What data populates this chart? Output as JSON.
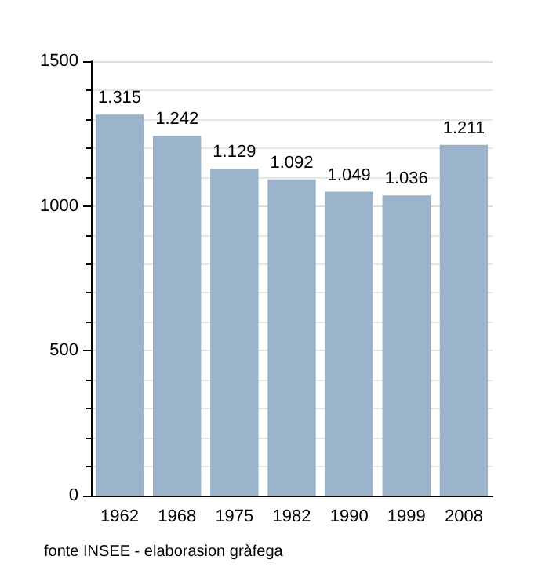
{
  "chart_data": {
    "type": "bar",
    "categories": [
      "1962",
      "1968",
      "1975",
      "1982",
      "1990",
      "1999",
      "2008"
    ],
    "values": [
      1315,
      1242,
      1129,
      1092,
      1049,
      1036,
      1211
    ],
    "value_labels": [
      "1.315",
      "1.242",
      "1.129",
      "1.092",
      "1.049",
      "1.036",
      "1.211"
    ],
    "color": "#9bb4cc",
    "ylim": [
      0,
      1500
    ],
    "yticks": [
      0,
      500,
      {
        "value": 1000,
        "label": "1000"
      },
      {
        "value": 1500,
        "label": "1500"
      }
    ],
    "grid": "y",
    "annotations": [
      "fonte INSEE - elaborasion gràfega"
    ]
  }
}
